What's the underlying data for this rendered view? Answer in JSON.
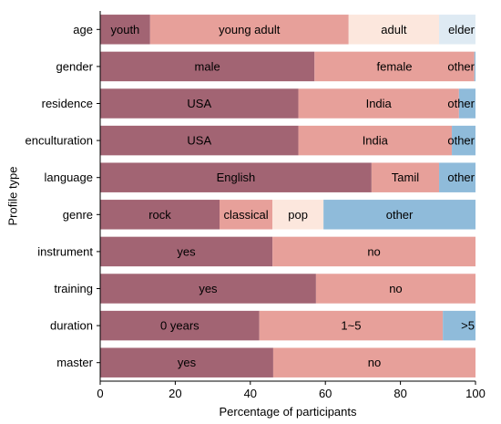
{
  "chart_data": {
    "type": "bar",
    "orientation": "horizontal",
    "stacked": true,
    "xlabel": "Percentage of participants",
    "ylabel": "Profile type",
    "xlim": [
      0,
      100
    ],
    "xticks": [
      "0",
      "20",
      "40",
      "60",
      "80",
      "100"
    ],
    "grid": false,
    "categories": [
      "age",
      "gender",
      "residence",
      "enculturation",
      "language",
      "genre",
      "instrument",
      "training",
      "duration",
      "master"
    ],
    "rows": [
      {
        "category": "age",
        "segments": [
          {
            "label": "youth",
            "value": 13.3,
            "color": "#a26473"
          },
          {
            "label": "young adult",
            "value": 52.9,
            "color": "#e7a09a"
          },
          {
            "label": "adult",
            "value": 24.1,
            "color": "#fce7dd"
          },
          {
            "label": "elder",
            "value": 9.7,
            "color": "#deeaf3"
          }
        ]
      },
      {
        "category": "gender",
        "segments": [
          {
            "label": "male",
            "value": 57.1,
            "color": "#a26473"
          },
          {
            "label": "female",
            "value": 42.6,
            "color": "#e7a09a"
          },
          {
            "label": "other",
            "value": 0.3,
            "color": "#8fbbda"
          }
        ]
      },
      {
        "category": "residence",
        "segments": [
          {
            "label": "USA",
            "value": 52.8,
            "color": "#a26473"
          },
          {
            "label": "India",
            "value": 42.8,
            "color": "#e7a09a"
          },
          {
            "label": "other",
            "value": 4.4,
            "color": "#8fbbda"
          }
        ]
      },
      {
        "category": "enculturation",
        "segments": [
          {
            "label": "USA",
            "value": 52.8,
            "color": "#a26473"
          },
          {
            "label": "India",
            "value": 40.9,
            "color": "#e7a09a"
          },
          {
            "label": "other",
            "value": 6.3,
            "color": "#8fbbda"
          }
        ]
      },
      {
        "category": "language",
        "segments": [
          {
            "label": "English",
            "value": 72.3,
            "color": "#a26473"
          },
          {
            "label": "Tamil",
            "value": 18.0,
            "color": "#e7a09a"
          },
          {
            "label": "other",
            "value": 9.7,
            "color": "#8fbbda"
          }
        ]
      },
      {
        "category": "genre",
        "segments": [
          {
            "label": "rock",
            "value": 31.8,
            "color": "#a26473"
          },
          {
            "label": "classical",
            "value": 14.1,
            "color": "#e7a09a"
          },
          {
            "label": "pop",
            "value": 13.6,
            "color": "#fce7dd"
          },
          {
            "label": "other",
            "value": 40.5,
            "color": "#8fbbda"
          }
        ]
      },
      {
        "category": "instrument",
        "segments": [
          {
            "label": "yes",
            "value": 45.9,
            "color": "#a26473"
          },
          {
            "label": "no",
            "value": 54.1,
            "color": "#e7a09a"
          }
        ]
      },
      {
        "category": "training",
        "segments": [
          {
            "label": "yes",
            "value": 57.5,
            "color": "#a26473"
          },
          {
            "label": "no",
            "value": 42.5,
            "color": "#e7a09a"
          }
        ]
      },
      {
        "category": "duration",
        "segments": [
          {
            "label": "0 years",
            "value": 42.4,
            "color": "#a26473"
          },
          {
            "label": "1~5",
            "value": 48.9,
            "color": "#e7a09a"
          },
          {
            "label": ">5",
            "value": 8.7,
            "color": "#8fbbda"
          }
        ]
      },
      {
        "category": "master",
        "segments": [
          {
            "label": "yes",
            "value": 46.1,
            "color": "#a26473"
          },
          {
            "label": "no",
            "value": 53.9,
            "color": "#e7a09a"
          }
        ]
      }
    ]
  }
}
